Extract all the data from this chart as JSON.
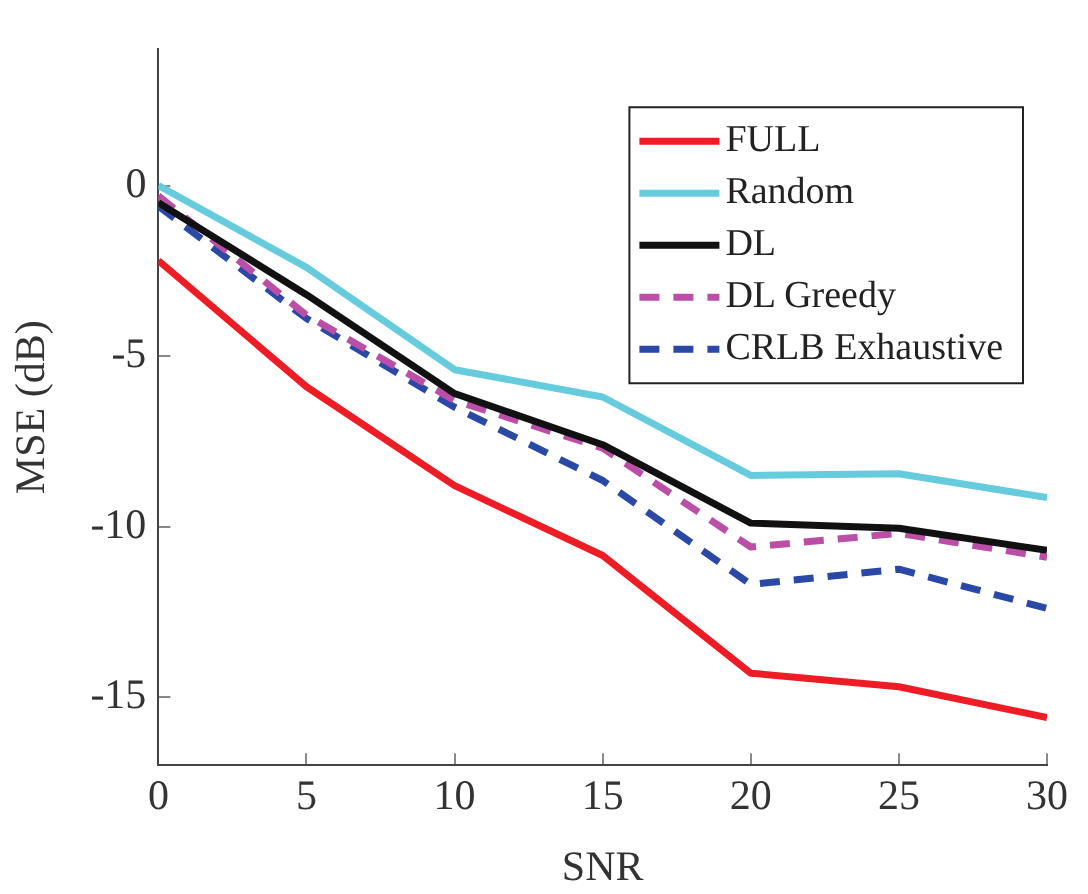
{
  "chart_data": {
    "type": "line",
    "xlabel": "SNR",
    "ylabel": "MSE (dB)",
    "x": [
      0,
      5,
      10,
      15,
      20,
      25,
      30
    ],
    "xlim": [
      0,
      30
    ],
    "xticks": [
      0,
      5,
      10,
      15,
      20,
      25,
      30
    ],
    "ylim": [
      -17,
      4
    ],
    "yticks": [
      -15,
      -10,
      -5,
      0
    ],
    "grid": false,
    "legend": "top right",
    "marker": "none",
    "series": [
      {
        "name": "FULL",
        "color": "#ee1c24",
        "line_style": "solid",
        "values": [
          -2.2,
          -5.9,
          -8.8,
          -10.85,
          -14.3,
          -14.7,
          -15.6
        ]
      },
      {
        "name": "Random",
        "color": "#66ccdd",
        "line_style": "solid",
        "values": [
          0,
          -2.4,
          -5.4,
          -6.2,
          -8.5,
          -8.45,
          -9.15
        ]
      },
      {
        "name": "DL",
        "color": "#111111",
        "line_style": "solid",
        "values": [
          -0.5,
          -3.2,
          -6.1,
          -7.6,
          -9.9,
          -10.05,
          -10.7
        ]
      },
      {
        "name": "DL Greedy",
        "color": "#bb4fa8",
        "line_style": "dashed",
        "values": [
          -0.3,
          -3.8,
          -6.3,
          -7.7,
          -10.6,
          -10.2,
          -10.9
        ]
      },
      {
        "name": "CRLB Exhaustive",
        "color": "#2a48a6",
        "line_style": "dashed",
        "values": [
          -0.6,
          -3.9,
          -6.5,
          -8.65,
          -11.7,
          -11.25,
          -12.4
        ]
      }
    ]
  }
}
